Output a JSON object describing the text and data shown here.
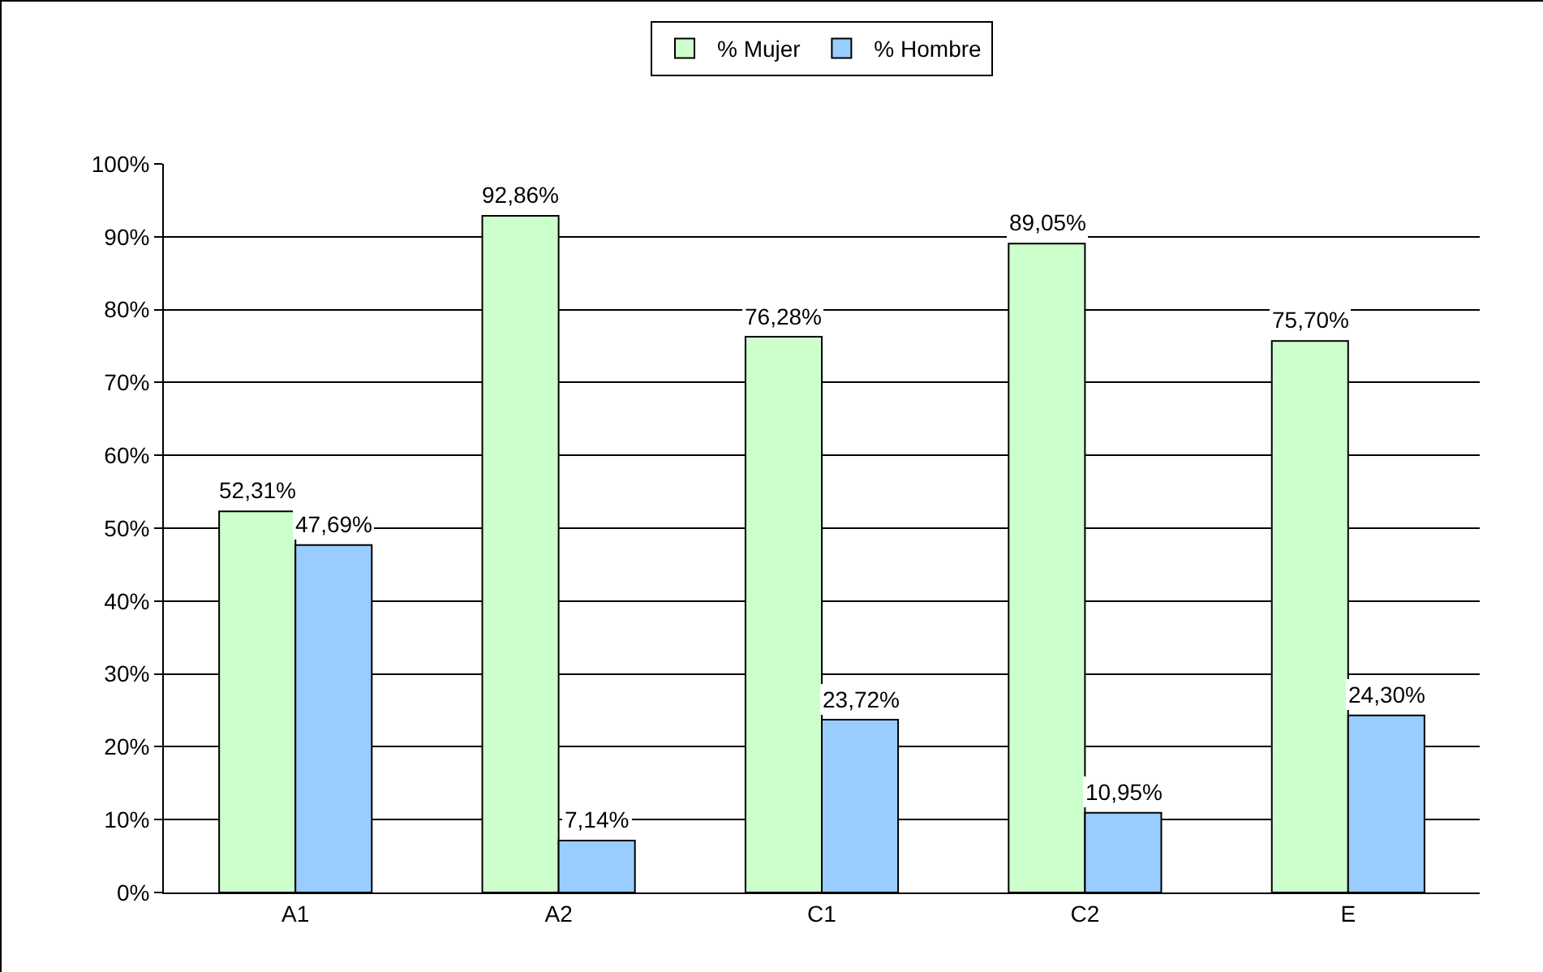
{
  "chart_data": {
    "type": "bar",
    "categories": [
      "A1",
      "A2",
      "C1",
      "C2",
      "E"
    ],
    "series": [
      {
        "name": "% Mujer",
        "color": "#ccffcc",
        "values": [
          52.31,
          92.86,
          76.28,
          89.05,
          75.7
        ],
        "value_labels": [
          "52,31%",
          "92,86%",
          "76,28%",
          "89,05%",
          "75,70%"
        ]
      },
      {
        "name": "% Hombre",
        "color": "#99ccff",
        "values": [
          47.69,
          7.14,
          23.72,
          10.95,
          24.3
        ],
        "value_labels": [
          "47,69%",
          "7,14%",
          "23,72%",
          "10,95%",
          "24,30%"
        ]
      }
    ],
    "ylim": [
      0,
      100
    ],
    "yticks": [
      {
        "value": 0,
        "label": "0%"
      },
      {
        "value": 10,
        "label": "10%"
      },
      {
        "value": 20,
        "label": "20%"
      },
      {
        "value": 30,
        "label": "30%"
      },
      {
        "value": 40,
        "label": "40%"
      },
      {
        "value": 50,
        "label": "50%"
      },
      {
        "value": 60,
        "label": "60%"
      },
      {
        "value": 70,
        "label": "70%"
      },
      {
        "value": 80,
        "label": "80%"
      },
      {
        "value": 90,
        "label": "90%"
      },
      {
        "value": 100,
        "label": "100%"
      }
    ],
    "grid": "y",
    "legend": "top"
  }
}
